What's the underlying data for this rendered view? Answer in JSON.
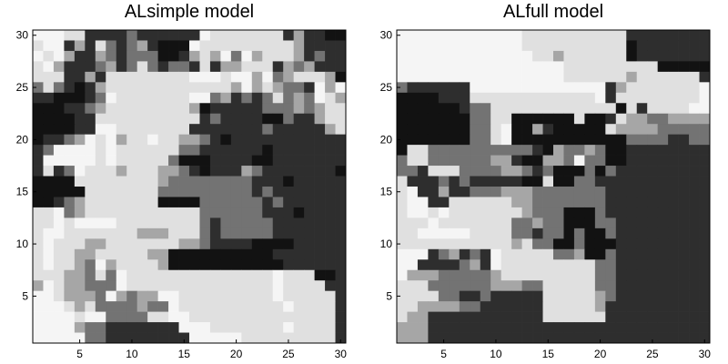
{
  "chart_data": [
    {
      "type": "heatmap",
      "title": "ALsimple model",
      "xlabel": "",
      "ylabel": "",
      "xlim": [
        0.5,
        30.5
      ],
      "ylim": [
        0.5,
        30.5
      ],
      "xticks": [
        5,
        10,
        15,
        20,
        25,
        30
      ],
      "yticks": [
        5,
        10,
        15,
        20,
        25,
        30
      ],
      "colormap": "gray",
      "grid": false,
      "rows_top_to_bottom": [
        "fffeebbbbcbbbbbbfeeeeeeebdbbaa",
        "effbdbecbcdbaaafeeeeeeeeedbbbb",
        "fefdbbdcbcccaabdedfcfdeeedbcbb",
        "efdbbbcdbcecbccbebddeeebdcdbbb",
        "eeebbdbeeeeeeeefffeffdfcdeeeda",
        "cecbabdeeeeeeeeeeeedfdedccbfdf",
        "bbaaabcfeeeeeeeffcdbcbcecdcfed",
        "aaabbcdeeeeeeeedabbbbbcccdcdee",
        "aaaabbeeeeeeeeeebcbbbbaacbbdee",
        "aaaabbffeeeeeeebbbbbbbcbbbbbde",
        "abbcdfefdeefeeddcbabbbbbbbbbbb",
        "bcffffefeeeeeeccbbbbbbabbbbbbb",
        "bfffffefeeeeecaaabbbbaabbbbbbb",
        "bebcfeeedeeeddcbabbbdcbbbbbbba",
        "aaaaeeeeeeeedccccccccbbbabbbbb",
        "aaaaaeeeeeeecccccccccbcbbbbbbb",
        "aabcdeeeeeeeaaaaccccccbcbbbbbb",
        "eefcdeeeeeeeeeeeccccccbbbabbbb",
        "eefeffffeeeeeeeecbcccccbbbbbbb",
        "effeeeeeeedddeeecbcccccbbbbbbb",
        "efeeeddeeeeeeeddcbbbbaaaabbbbb",
        "efeeddeeeeeddaaaaaaaaaabbbbbbb",
        "efeedcfdeeeedaaaaaaaaaaabbbbbb",
        "eeeddcecfeeeeeeeeeeeeeefeeeaab",
        "dfeddcccfeeeeeeeeeeeeeefeeeebb",
        "ffedddcfdcddffeeeeeeeeefeeeeeb",
        "fffedeccccdccfeeeeeeeeeefeeeeb",
        "ffffeffcccceeffeeeeeeeeeeeeeeb",
        "ffffdccbbbbbbbfffeeeeeeefeeeeb",
        "fffffccbbbbbbbbfffffeeeeeeeeeb"
      ],
      "cell_values_note": "a=0.07 b=0.18 c=0.45 d=0.65 e=0.88 f=0.96 (relative intensity, higher = lighter)"
    },
    {
      "type": "heatmap",
      "title": "ALfull model",
      "xlabel": "",
      "ylabel": "",
      "xlim": [
        0.5,
        30.5
      ],
      "ylim": [
        0.5,
        30.5
      ],
      "xticks": [
        5,
        10,
        15,
        20,
        25,
        30
      ],
      "yticks": [
        5,
        10,
        15,
        20,
        25,
        30
      ],
      "colormap": "gray",
      "grid": false,
      "rows_top_to_bottom": [
        "ffffffffffffeeeeeeeeeebbbbbbbb",
        "ffffffffffffeeeeeeeeeeabbbbbbb",
        "fffffffffffffeedeeeeeeabbbbbbb",
        "ffffffffffffffffeeeeeeeeeaaaaa",
        "ffffffffffffffffeeeeeedeeeeeeb",
        "cbbbbbbfffffffffffffbdeeeeeeef",
        "aaaabbbeeeeeeeeeeeefbeeeeeeeef",
        "aaaaaabcceeeeeeeeeeeeaebeeeeff",
        "aaaaaaacceeaaaaaaeaabeddccdddd",
        "aaaaaaaccefaadbaaaaaeddddccccc",
        "aaaaaaaccefaaaaaaaaaaaccccbbcc",
        "aeeccccccccccbadccdcaabbbbbbbb",
        "ceeccccccddbaaddcfccaabbbbbbbb",
        "ccbeeeccccddcbcaaacacbbbbbbbbb",
        "ebbbcbcbbbbbaaeaaccbbbbbbbbbbb",
        "efbbdbbcccdddcccccccbbbbbbbbbb",
        "effbbeeeeeeddcccccccbbbbbbbbbb",
        "effefeeeeeeedcccaaacbbbbbbbbbb",
        "eeefeeeeeeeccdccaaaccbbbbbbbbb",
        "eefffffeeeeccbccacaacbbbbbbbbb",
        "eeeeeeeeeeedeccaacaaabbbbbbbbb",
        "fffbcdbcbfeeeeeccdaacbbbbbbbbb",
        "ffbbbbcdbfeeeeeeeeeccbbbbbbbbb",
        "fdddcccccdeeeeeeeeeccbbbbbbbbb",
        "eeeccccccdddcceeeeeccbbbbbbbbb",
        "eeeeccbbcbbbbbeeeeedcbbbbbbbbb",
        "eeddddccbbbbbbeeeeedbbbbbbbbbb",
        "eddbbbbbbbbbbbeeeeeebbbbbbbbbb",
        "dddbbbbbbbbbbbbbbbbbbbbbbbbbbb",
        "dddbbbbbbbbbbbbbbbbbbbbbbbbbbb"
      ],
      "cell_values_note": "a=0.07 b=0.18 c=0.45 d=0.65 e=0.88 f=0.96 (relative intensity, higher = lighter)"
    }
  ]
}
